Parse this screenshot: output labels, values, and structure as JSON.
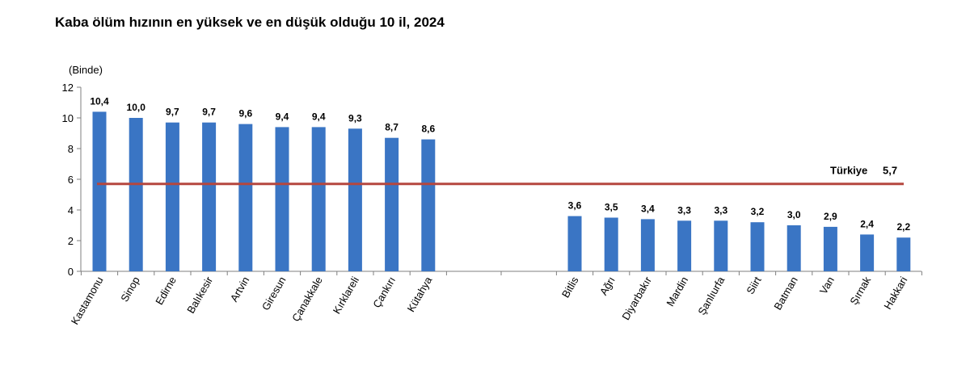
{
  "title": "Kaba ölüm hızının en yüksek ve en düşük olduğu 10 il, 2024",
  "chart_data": {
    "type": "bar",
    "unit_label": "(Binde)",
    "ylim": [
      0,
      12
    ],
    "yticks": [
      "0",
      "2",
      "4",
      "6",
      "8",
      "10",
      "12"
    ],
    "categories": [
      "Kastamonu",
      "Sinop",
      "Edirne",
      "Balıkesir",
      "Artvin",
      "Giresun",
      "Çanakkale",
      "Kırklareli",
      "Çankırı",
      "Kütahya",
      "Bitlis",
      "Ağrı",
      "Diyarbakır",
      "Mardin",
      "Şanlıurfa",
      "Siirt",
      "Batman",
      "Van",
      "Şırnak",
      "Hakkari"
    ],
    "values": [
      10.4,
      10.0,
      9.7,
      9.7,
      9.6,
      9.4,
      9.4,
      9.3,
      8.7,
      8.6,
      3.6,
      3.5,
      3.4,
      3.3,
      3.3,
      3.2,
      3.0,
      2.9,
      2.4,
      2.2
    ],
    "value_labels": [
      "10,4",
      "10,0",
      "9,7",
      "9,7",
      "9,6",
      "9,4",
      "9,4",
      "9,3",
      "8,7",
      "8,6",
      "3,6",
      "3,5",
      "3,4",
      "3,3",
      "3,3",
      "3,2",
      "3,0",
      "2,9",
      "2,4",
      "2,2"
    ],
    "reference_line": {
      "label": "Türkiye",
      "value": 5.7,
      "value_label": "5,7"
    },
    "bar_color": "#3A75C4",
    "reference_color": "#B5473F",
    "grid": false
  }
}
